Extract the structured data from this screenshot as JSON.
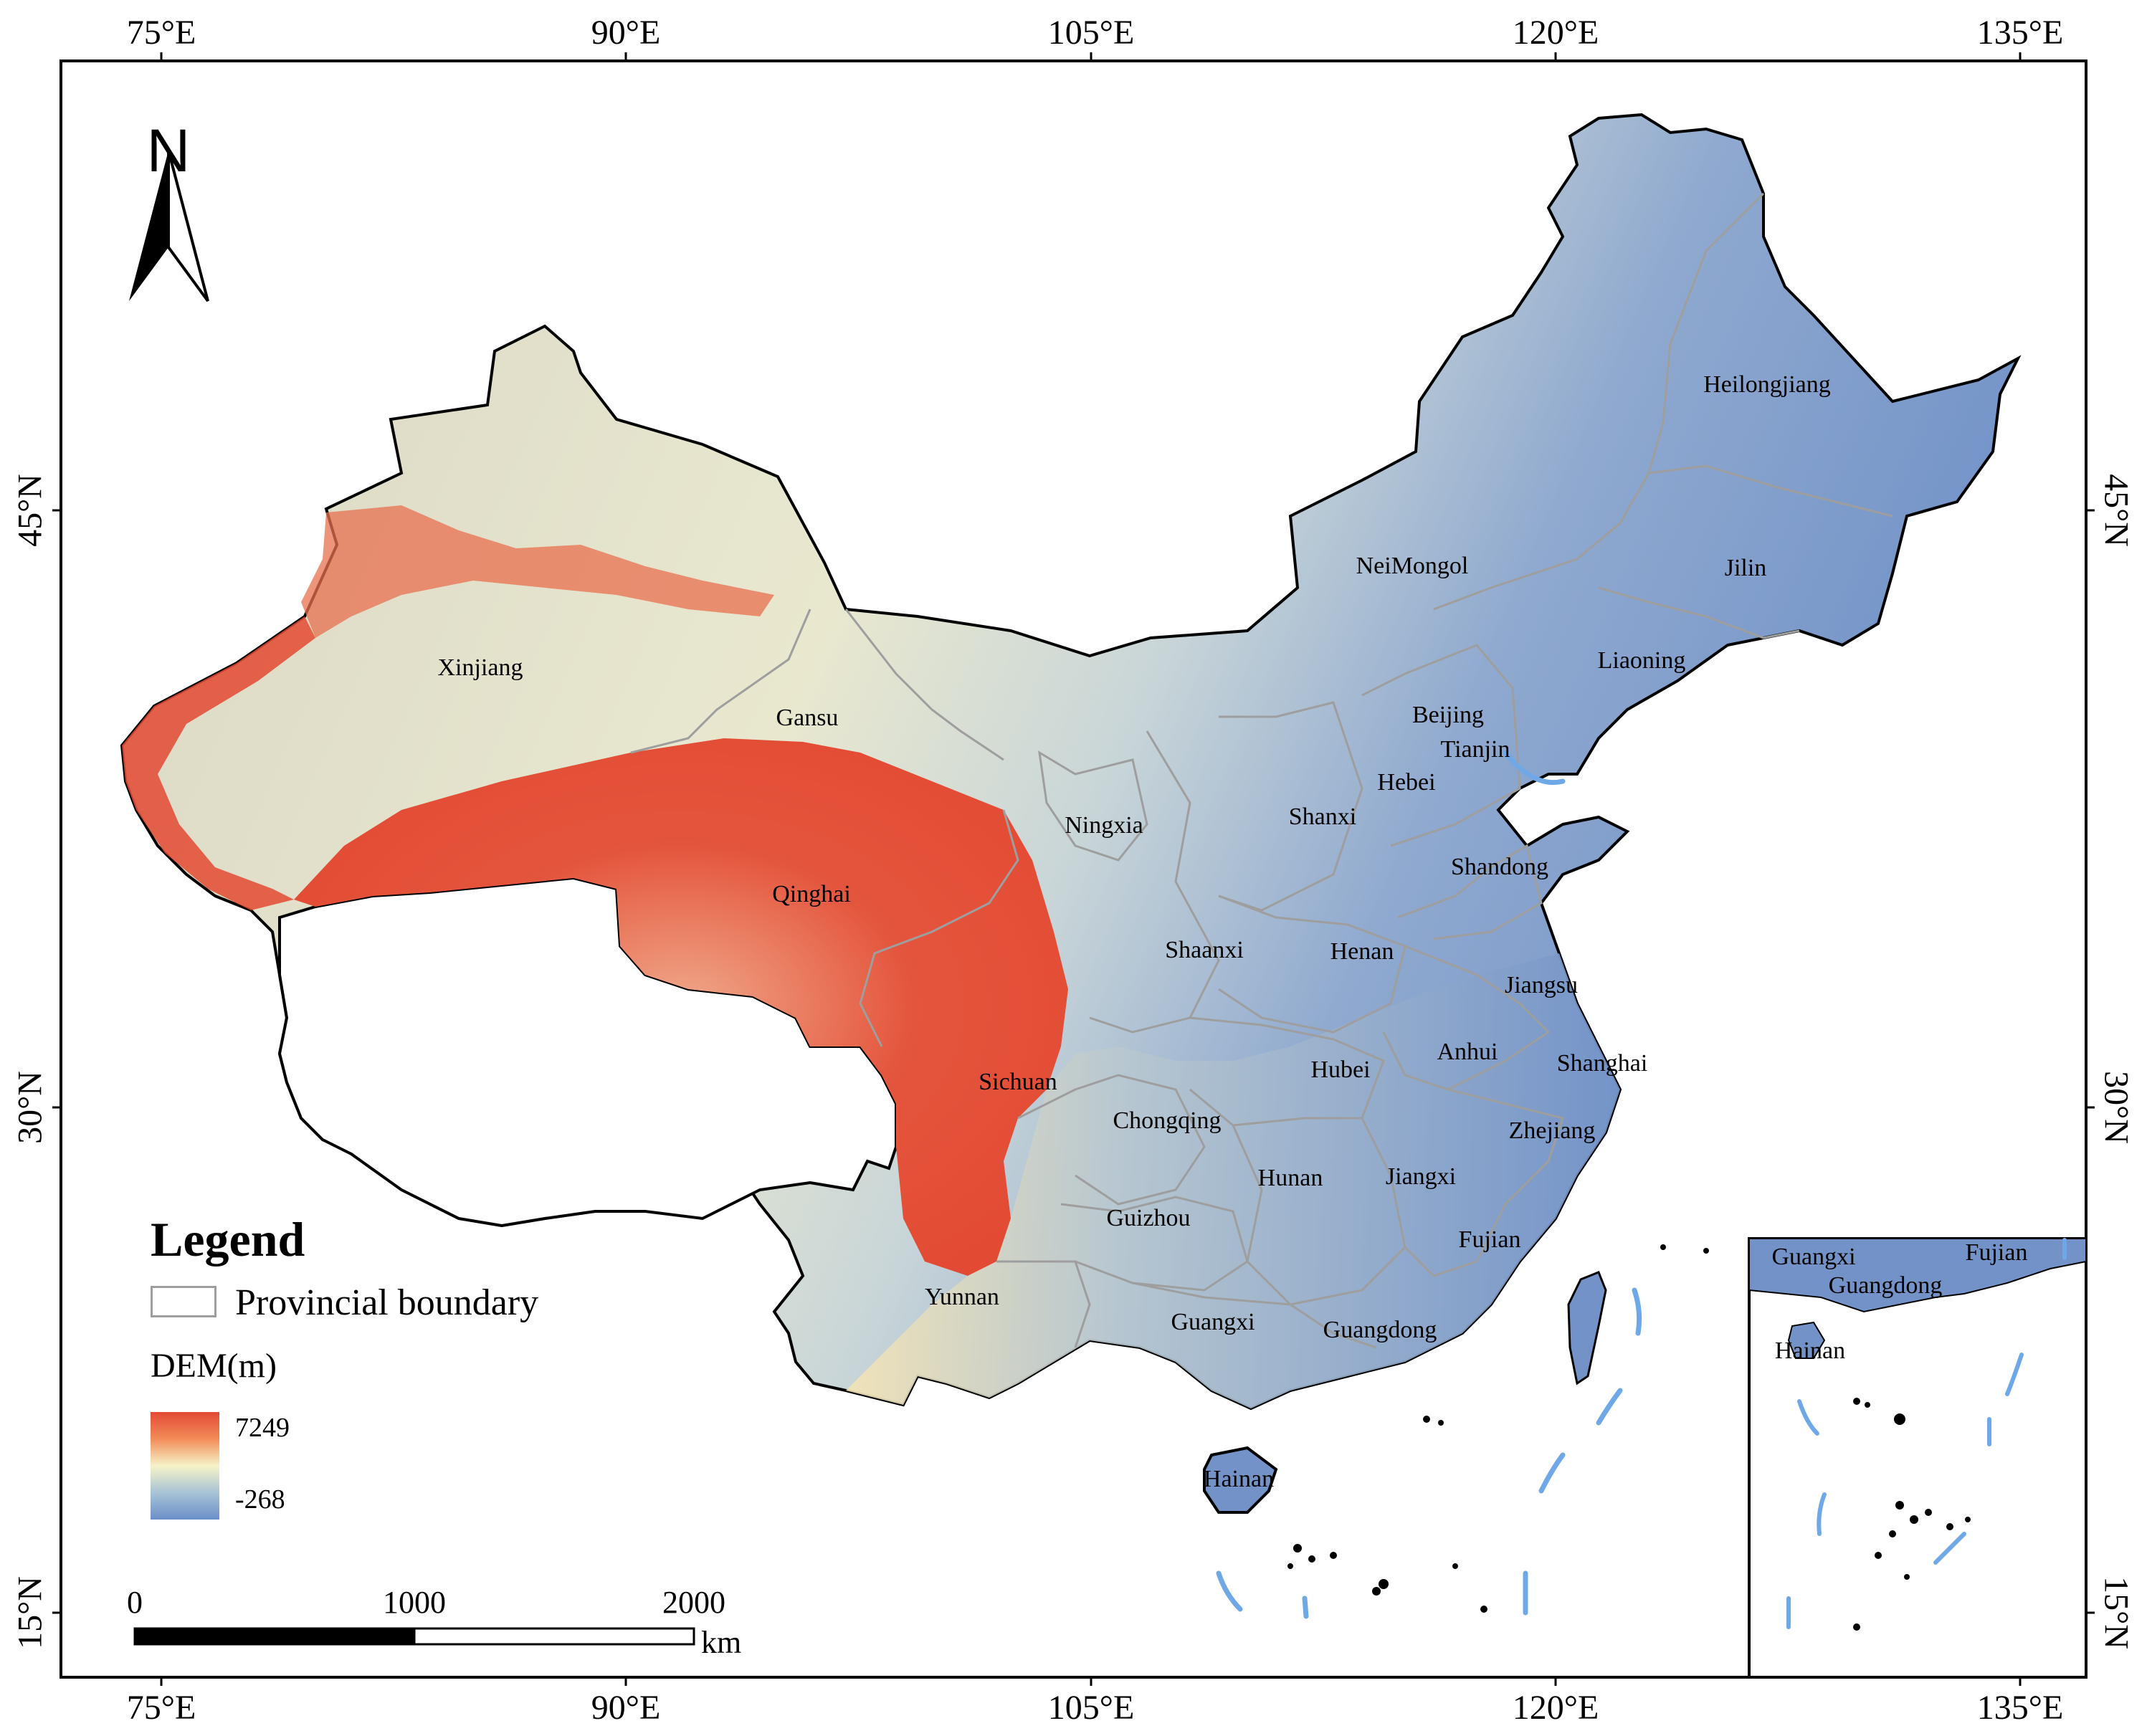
{
  "map": {
    "graticule": {
      "longitudes": [
        "75°E",
        "90°E",
        "105°E",
        "120°E",
        "135°E"
      ],
      "latitudes": [
        "45°N",
        "30°N",
        "15°N"
      ]
    },
    "north_arrow": {
      "letter": "N"
    },
    "provinces": {
      "xinjiang": "Xinjiang",
      "gansu": "Gansu",
      "qinghai": "Qinghai",
      "ningxia": "Ningxia",
      "neimongol": "NeiMongol",
      "heilongjiang": "Heilongjiang",
      "jilin": "Jilin",
      "liaoning": "Liaoning",
      "beijing": "Beijing",
      "tianjin": "Tianjin",
      "hebei": "Hebei",
      "shanxi": "Shanxi",
      "shandong": "Shandong",
      "shaanxi": "Shaanxi",
      "henan": "Henan",
      "jiangsu": "Jiangsu",
      "anhui": "Anhui",
      "shanghai": "Shanghai",
      "hubei": "Hubei",
      "sichuan": "Sichuan",
      "chongqing": "Chongqing",
      "zhejiang": "Zhejiang",
      "hunan": "Hunan",
      "jiangxi": "Jiangxi",
      "guizhou": "Guizhou",
      "fujian": "Fujian",
      "yunnan": "Yunnan",
      "guangxi": "Guangxi",
      "guangdong": "Guangdong",
      "hainan": "Hainan"
    },
    "inset": {
      "guangxi": "Guangxi",
      "fujian": "Fujian",
      "guangdong": "Guangdong",
      "hainan": "Hainan"
    },
    "legend": {
      "title": "Legend",
      "boundary_label": "Provincial boundary",
      "dem_title": "DEM(m)",
      "dem_max": "7249",
      "dem_min": "-268",
      "colors": {
        "high": "#e34a33",
        "mid_high": "#f28c59",
        "mid": "#f6f3c8",
        "mid_low": "#a7c3d6",
        "low": "#6b8fc9"
      }
    },
    "scale_bar": {
      "ticks": [
        "0",
        "1000",
        "2000"
      ],
      "unit": "km"
    },
    "colors": {
      "boundary": "#9e9e9e",
      "coastline": "#000000",
      "water": "#6fa8e6",
      "high_elevation": "#e34a33",
      "low_elevation": "#6b8fc9"
    }
  }
}
